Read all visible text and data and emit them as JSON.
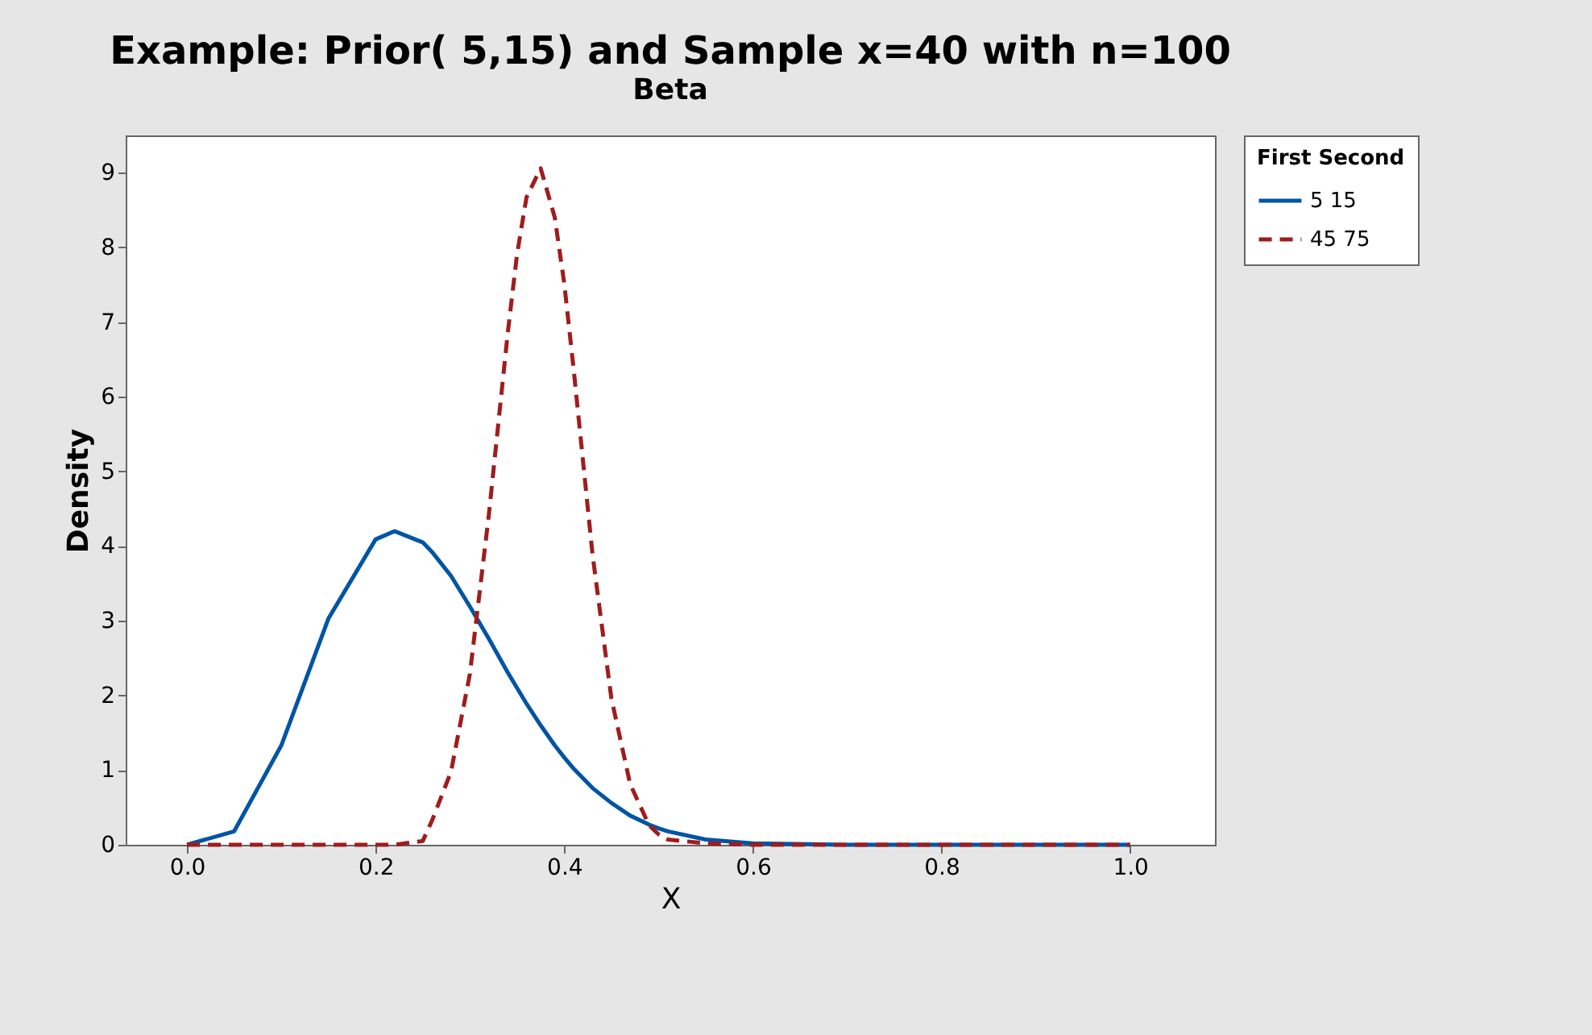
{
  "chart_data": {
    "type": "line",
    "title": "Example: Prior( 5,15) and Sample x=40 with n=100",
    "subtitle": "Beta",
    "xlabel": "X",
    "ylabel": "Density",
    "legend_title": "First Second",
    "legend": "top right",
    "grid": false,
    "marker": "none",
    "x": [
      0,
      0.05,
      0.1,
      0.15,
      0.2,
      0.22,
      0.25,
      0.26,
      0.28,
      0.3,
      0.32,
      0.34,
      0.35,
      0.36,
      0.375,
      0.39,
      0.4,
      0.41,
      0.43,
      0.45,
      0.47,
      0.49,
      0.5,
      0.51,
      0.55,
      0.6,
      0.7,
      0.8,
      1.0
    ],
    "series": [
      {
        "name": "5 15",
        "color": "#0054a6",
        "line_style": "solid",
        "values": [
          0,
          0.18,
          1.33,
          3.03,
          4.09,
          4.2,
          4.05,
          3.92,
          3.6,
          3.19,
          2.76,
          2.31,
          2.1,
          1.89,
          1.6,
          1.33,
          1.17,
          1.02,
          0.76,
          0.56,
          0.39,
          0.27,
          0.22,
          0.18,
          0.07,
          0.02,
          0,
          0,
          0
        ]
      },
      {
        "name": "45 75",
        "color": "#a01c1c",
        "line_style": "dashed",
        "values": [
          0,
          0,
          0,
          0,
          0,
          0,
          0.05,
          0.33,
          0.98,
          2.29,
          4.41,
          6.84,
          7.91,
          8.67,
          9.06,
          8.4,
          7.52,
          6.37,
          3.89,
          1.96,
          0.81,
          0.26,
          0.14,
          0.07,
          0.02,
          0,
          0,
          0,
          0
        ]
      }
    ],
    "xlim": [
      -0.065,
      1.09
    ],
    "xticks": [
      {
        "value": 0,
        "label": "0.0"
      },
      0.2,
      0.4,
      0.6,
      0.8,
      {
        "value": 1,
        "label": "1.0"
      }
    ],
    "ylim": [
      0,
      9.5
    ],
    "yticks": [
      0,
      1,
      2,
      3,
      4,
      5,
      6,
      7,
      8,
      9
    ]
  }
}
